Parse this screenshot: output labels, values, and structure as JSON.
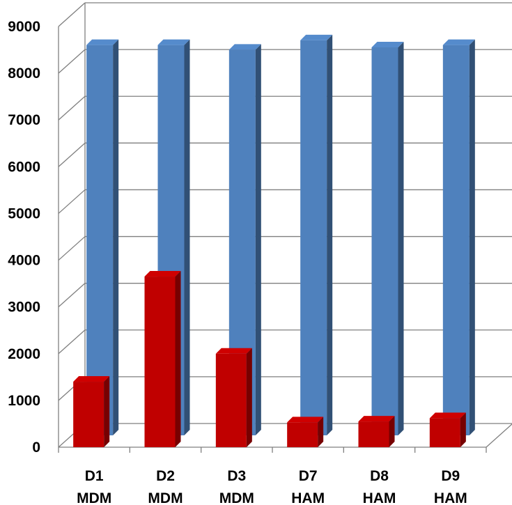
{
  "chart_data": {
    "type": "bar",
    "title": "",
    "xlabel": "",
    "ylabel": "",
    "ylim": [
      0,
      9000
    ],
    "yticks": [
      0,
      1000,
      2000,
      3000,
      4000,
      5000,
      6000,
      7000,
      8000,
      9000
    ],
    "ytick_labels": [
      "0",
      "1000",
      "2000",
      "3000",
      "4000",
      "5000",
      "6000",
      "7000",
      "8000",
      "9000"
    ],
    "grid": true,
    "legend": "none",
    "style": "3d-clustered-column",
    "categories": [
      [
        "D1",
        "MDM"
      ],
      [
        "D2",
        "MDM"
      ],
      [
        "D3",
        "MDM"
      ],
      [
        "D7",
        "HAM"
      ],
      [
        "D8",
        "HAM"
      ],
      [
        "D9",
        "HAM"
      ]
    ],
    "series": [
      {
        "color": "#C00000",
        "values": [
          1400,
          3650,
          2000,
          530,
          550,
          620
        ]
      },
      {
        "color": "#4F81BD",
        "values": [
          8350,
          8350,
          8250,
          8450,
          8300,
          8350
        ]
      }
    ]
  }
}
